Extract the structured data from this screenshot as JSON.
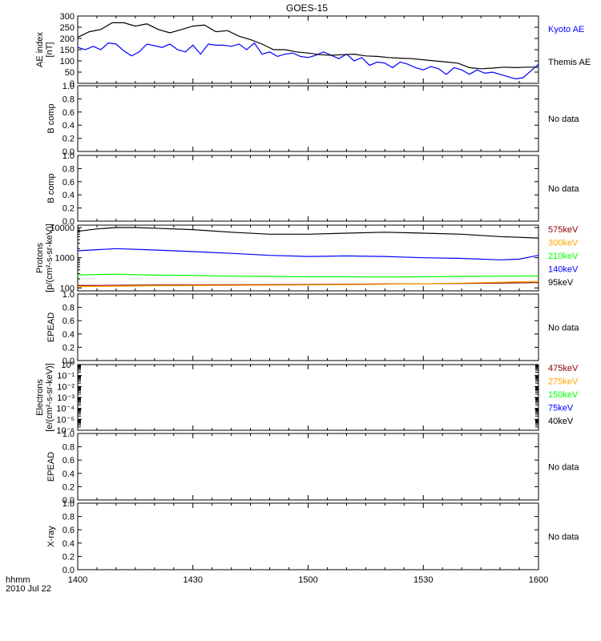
{
  "title": "GOES-15",
  "time_axis": {
    "label_line1": "hhmm",
    "label_line2": "2010 Jul 22",
    "ticks": [
      "1400",
      "1430",
      "1500",
      "1530",
      "1600"
    ]
  },
  "colors": {
    "black": "#000000",
    "blue": "#0000ff",
    "green": "#00ff00",
    "orange": "#ffa500",
    "darkred": "#8b0000"
  },
  "chart_data": [
    {
      "type": "line",
      "ylabel_line1": "AE index",
      "ylabel_line2": "[nT]",
      "ylim": [
        0,
        300
      ],
      "yticks": [
        "0",
        "50",
        "100",
        "150",
        "200",
        "250",
        "300"
      ],
      "x_minutes_since_label": "1400",
      "series": [
        {
          "name": "Kyoto AE",
          "color": "#0000ff",
          "x": [
            0,
            2,
            4,
            6,
            8,
            10,
            12,
            14,
            16,
            18,
            20,
            22,
            24,
            26,
            28,
            30,
            32,
            34,
            36,
            38,
            40,
            42,
            44,
            46,
            48,
            50,
            52,
            54,
            56,
            58,
            60,
            62,
            64,
            66,
            68,
            70,
            72,
            74,
            76,
            78,
            80,
            82,
            84,
            86,
            88,
            90,
            92,
            94,
            96,
            98,
            100,
            102,
            104,
            106,
            108,
            110,
            112,
            114,
            116,
            118,
            120
          ],
          "values": [
            160,
            150,
            165,
            150,
            180,
            175,
            145,
            122,
            140,
            175,
            168,
            160,
            175,
            150,
            140,
            170,
            130,
            175,
            170,
            170,
            165,
            175,
            150,
            180,
            130,
            140,
            120,
            130,
            135,
            120,
            115,
            125,
            140,
            125,
            110,
            130,
            100,
            115,
            80,
            95,
            90,
            70,
            95,
            85,
            70,
            60,
            75,
            65,
            40,
            70,
            60,
            40,
            60,
            45,
            50,
            40,
            30,
            20,
            25,
            55,
            85
          ]
        },
        {
          "name": "Themis AE",
          "color": "#000000",
          "x": [
            0,
            3,
            6,
            9,
            12,
            15,
            18,
            21,
            24,
            27,
            30,
            33,
            36,
            39,
            42,
            45,
            48,
            51,
            54,
            57,
            60,
            63,
            66,
            69,
            72,
            75,
            78,
            81,
            84,
            87,
            90,
            93,
            96,
            99,
            102,
            105,
            108,
            111,
            114,
            117,
            120
          ],
          "values": [
            205,
            230,
            240,
            270,
            270,
            255,
            265,
            240,
            225,
            240,
            255,
            260,
            230,
            235,
            210,
            195,
            175,
            150,
            150,
            140,
            135,
            128,
            125,
            128,
            130,
            122,
            120,
            115,
            112,
            110,
            105,
            100,
            95,
            90,
            70,
            65,
            68,
            72,
            70,
            72,
            72
          ]
        }
      ]
    },
    {
      "type": "line",
      "ylabel_line1": "B comp",
      "ylim": [
        0,
        1
      ],
      "yticks": [
        "0.0",
        "0.2",
        "0.4",
        "0.6",
        "0.8",
        "1.0"
      ],
      "note": "No data"
    },
    {
      "type": "line",
      "ylabel_line1": "B comp",
      "ylim": [
        0,
        1
      ],
      "yticks": [
        "0.0",
        "0.2",
        "0.4",
        "0.6",
        "0.8",
        "1.0"
      ],
      "note": "No data"
    },
    {
      "type": "line",
      "scale": "log",
      "ylabel_line1": "Protons",
      "ylabel_line2": "[p/(cm²-s-sr-keV)]",
      "ylim": [
        80,
        12000
      ],
      "yticks": [
        "100",
        "1000",
        "10000"
      ],
      "x_minutes_since_label": "1400",
      "series": [
        {
          "name": "575keV",
          "color": "#8b0000",
          "x": [
            0,
            20,
            40,
            60,
            80,
            100,
            120
          ],
          "values": [
            120,
            125,
            128,
            130,
            135,
            140,
            150
          ]
        },
        {
          "name": "300keV",
          "color": "#ffa500",
          "x": [
            0,
            20,
            40,
            60,
            80,
            100,
            120
          ],
          "values": [
            110,
            118,
            122,
            125,
            132,
            145,
            165
          ]
        },
        {
          "name": "210keV",
          "color": "#00ff00",
          "x": [
            0,
            10,
            20,
            30,
            40,
            50,
            60,
            70,
            80,
            90,
            100,
            110,
            120
          ],
          "values": [
            270,
            285,
            265,
            260,
            245,
            240,
            235,
            235,
            230,
            235,
            240,
            245,
            250
          ]
        },
        {
          "name": "140keV",
          "color": "#0000ff",
          "x": [
            0,
            10,
            20,
            30,
            40,
            50,
            60,
            70,
            80,
            90,
            100,
            110,
            115,
            120
          ],
          "values": [
            1700,
            2000,
            1800,
            1600,
            1400,
            1200,
            1100,
            1150,
            1100,
            1000,
            950,
            850,
            900,
            1200
          ]
        },
        {
          "name": "95keV",
          "color": "#000000",
          "x": [
            0,
            5,
            10,
            15,
            20,
            30,
            40,
            50,
            60,
            70,
            80,
            90,
            100,
            110,
            120
          ],
          "values": [
            7500,
            9000,
            10000,
            10000,
            9500,
            8500,
            7000,
            6000,
            6000,
            6500,
            7000,
            6500,
            6000,
            5000,
            4500
          ]
        }
      ]
    },
    {
      "type": "line",
      "ylabel_line1": "EPEAD",
      "ylim": [
        0,
        1
      ],
      "yticks": [
        "0.0",
        "0.2",
        "0.4",
        "0.6",
        "0.8",
        "1.0"
      ],
      "note": "No data"
    },
    {
      "type": "line",
      "scale": "log",
      "ylabel_line1": "Electrons",
      "ylabel_line2": "[e/(cm²-s-sr-keV)]",
      "ylim": [
        1e-06,
        1
      ],
      "yticks": [
        "10⁰",
        "10⁻¹",
        "10⁻²",
        "10⁻³",
        "10⁻⁴",
        "10⁻⁵",
        "10⁻⁶"
      ],
      "legend": [
        {
          "name": "475keV",
          "color": "#8b0000"
        },
        {
          "name": "275keV",
          "color": "#ffa500"
        },
        {
          "name": "150keV",
          "color": "#00ff00"
        },
        {
          "name": "75keV",
          "color": "#0000ff"
        },
        {
          "name": "40keV",
          "color": "#000000"
        }
      ]
    },
    {
      "type": "line",
      "ylabel_line1": "EPEAD",
      "ylim": [
        0,
        1
      ],
      "yticks": [
        "0.0",
        "0.2",
        "0.4",
        "0.6",
        "0.8",
        "1.0"
      ],
      "note": "No data"
    },
    {
      "type": "line",
      "ylabel_line1": "X-ray",
      "ylim": [
        0,
        1
      ],
      "yticks": [
        "0.0",
        "0.2",
        "0.4",
        "0.6",
        "0.8",
        "1.0"
      ],
      "note": "No data"
    }
  ]
}
